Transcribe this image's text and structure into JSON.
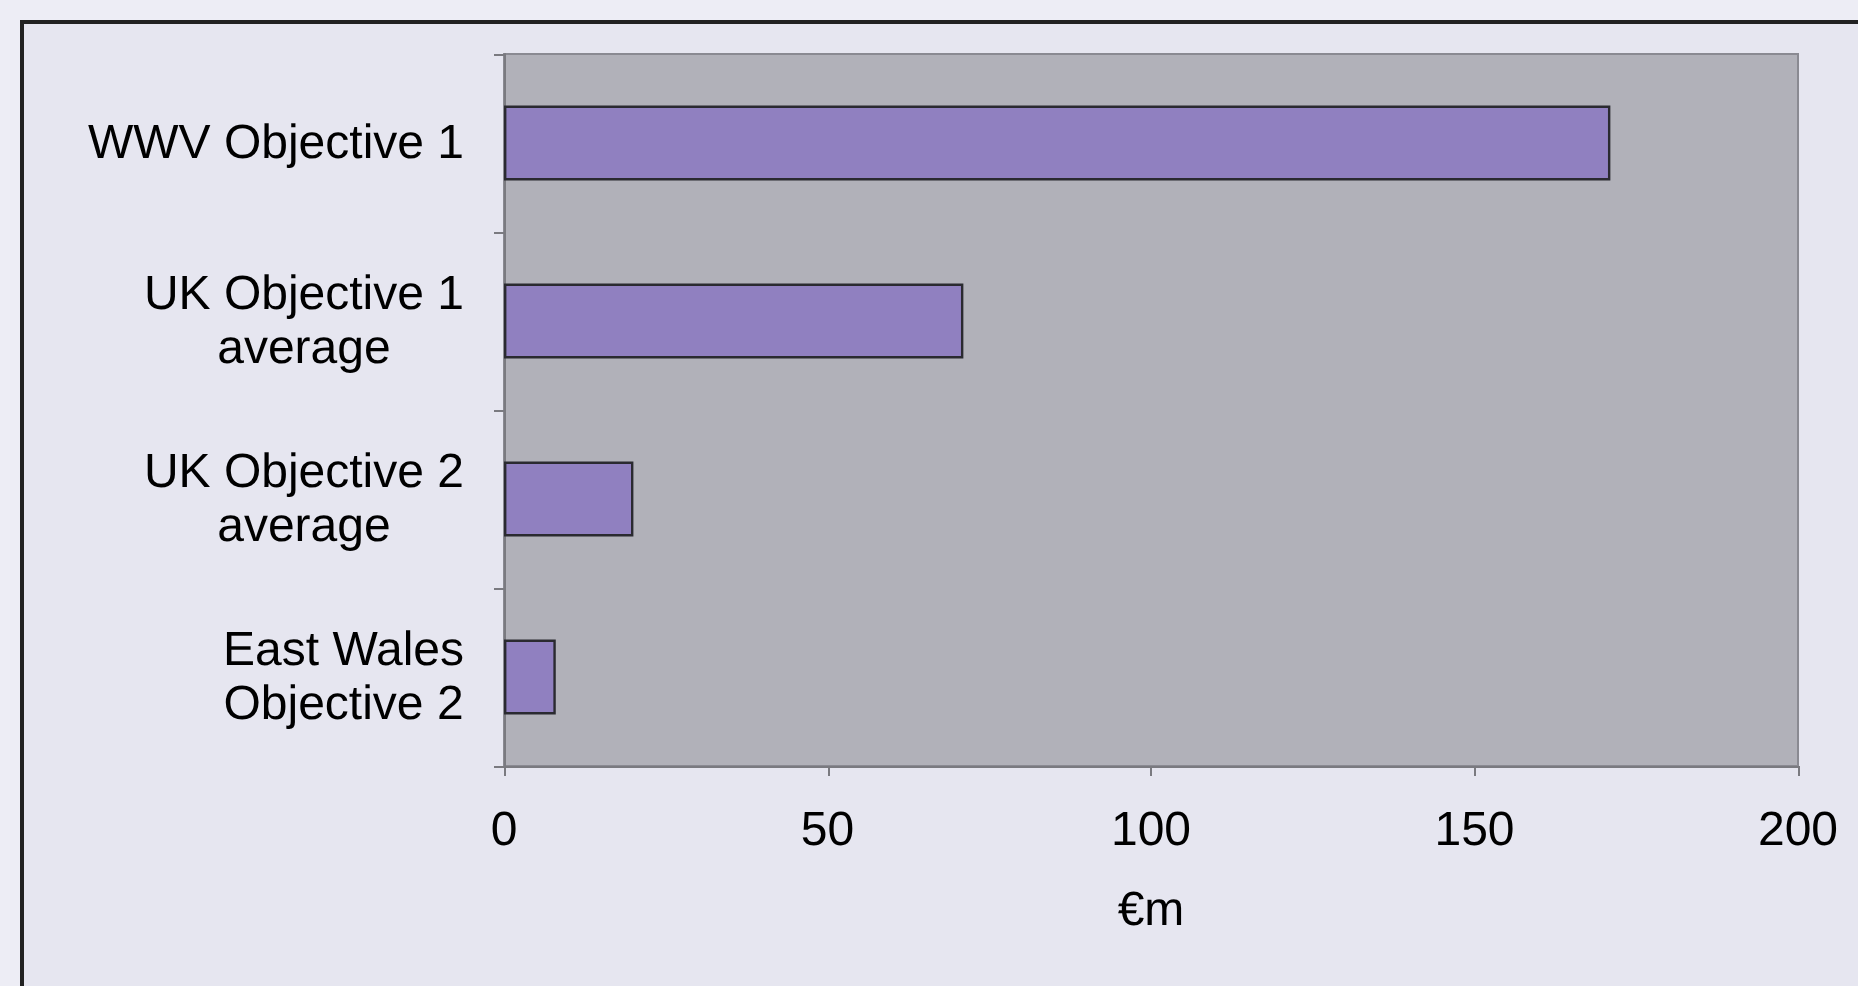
{
  "chart_data": {
    "type": "bar",
    "orientation": "horizontal",
    "categories": [
      "WWV Objective 1",
      "UK Objective 1 average",
      "UK Objective 2 average",
      "East Wales Objective 2"
    ],
    "values": [
      171,
      71,
      20,
      8
    ],
    "color": "#9080c0",
    "xlabel": "€m",
    "xlim": [
      0,
      200
    ],
    "xticks": [
      0,
      50,
      100,
      150,
      200
    ]
  }
}
